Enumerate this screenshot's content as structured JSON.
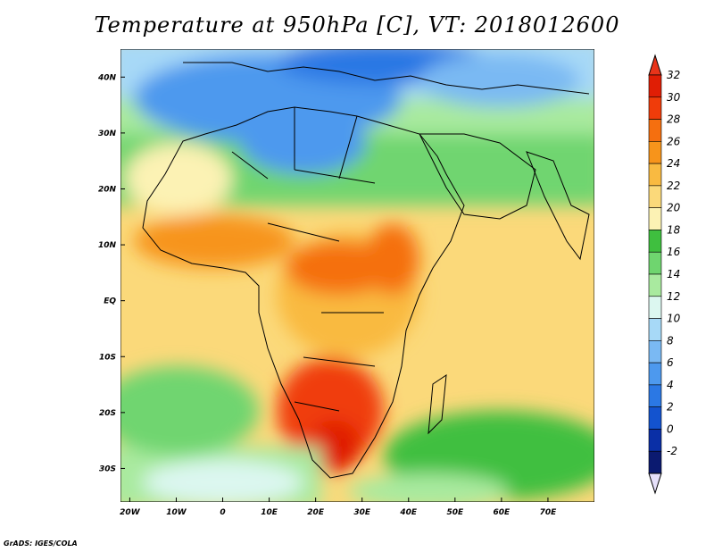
{
  "title": "Temperature at 950hPa [C], VT: 2018012600",
  "credit": "GrADS: IGES/COLA",
  "map": {
    "lon_range": [
      -22,
      80
    ],
    "lat_range": [
      -36,
      45
    ],
    "lon_ticks": [
      {
        "value": -20,
        "label": "20W"
      },
      {
        "value": -10,
        "label": "10W"
      },
      {
        "value": 0,
        "label": "0"
      },
      {
        "value": 10,
        "label": "10E"
      },
      {
        "value": 20,
        "label": "20E"
      },
      {
        "value": 30,
        "label": "30E"
      },
      {
        "value": 40,
        "label": "40E"
      },
      {
        "value": 50,
        "label": "50E"
      },
      {
        "value": 60,
        "label": "60E"
      },
      {
        "value": 70,
        "label": "70E"
      }
    ],
    "lat_ticks": [
      {
        "value": 40,
        "label": "40N"
      },
      {
        "value": 30,
        "label": "30N"
      },
      {
        "value": 20,
        "label": "20N"
      },
      {
        "value": 10,
        "label": "10N"
      },
      {
        "value": 0,
        "label": "EQ"
      },
      {
        "value": -10,
        "label": "10S"
      },
      {
        "value": -20,
        "label": "20S"
      },
      {
        "value": -30,
        "label": "30S"
      }
    ]
  },
  "colorbar": {
    "levels": [
      {
        "label": "32",
        "color": "#e01e05"
      },
      {
        "label": "30",
        "color": "#f03c0a"
      },
      {
        "label": "28",
        "color": "#f56f0f"
      },
      {
        "label": "26",
        "color": "#f7941b"
      },
      {
        "label": "24",
        "color": "#f9ba41"
      },
      {
        "label": "22",
        "color": "#fbd97a"
      },
      {
        "label": "20",
        "color": "#fcf2b4"
      },
      {
        "label": "18",
        "color": "#3fbf3f"
      },
      {
        "label": "16",
        "color": "#6fd56f"
      },
      {
        "label": "14",
        "color": "#a9ea9f"
      },
      {
        "label": "12",
        "color": "#dcf7f0"
      },
      {
        "label": "10",
        "color": "#a7d9f7"
      },
      {
        "label": "8",
        "color": "#7ab9f3"
      },
      {
        "label": "6",
        "color": "#4d99ee"
      },
      {
        "label": "4",
        "color": "#2b78e4"
      },
      {
        "label": "2",
        "color": "#1353cf"
      },
      {
        "label": "0",
        "color": "#0a2fa6"
      },
      {
        "label": "-2",
        "color": "#0b1a70"
      }
    ],
    "over_color": "#e8341a",
    "under_color": "#e6e0fa"
  }
}
